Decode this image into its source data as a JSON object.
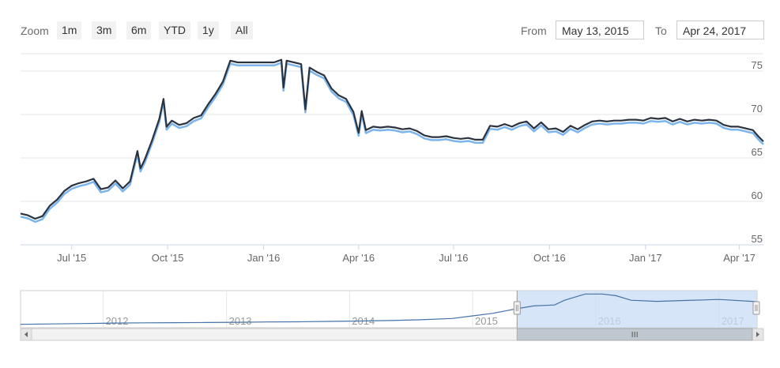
{
  "range_selector": {
    "zoom_label": "Zoom",
    "buttons": [
      "1m",
      "3m",
      "6m",
      "YTD",
      "1y",
      "All"
    ],
    "from_label": "From",
    "from_value": "May 13, 2015",
    "to_label": "To",
    "to_value": "Apr 24, 2017"
  },
  "colors": {
    "series_main": "#2b3340",
    "series_secondary": "#7cb5ec",
    "grid": "#e6e6e6",
    "navigator_mask": "#c8dcf5",
    "navigator_line": "#4572a7"
  },
  "chart_data": {
    "type": "line",
    "title": "",
    "xlabel": "",
    "ylabel": "",
    "x_range": [
      "2015-05-13",
      "2017-04-24"
    ],
    "ylim": [
      55,
      77
    ],
    "y_ticks": [
      55,
      60,
      65,
      70,
      75
    ],
    "x_ticks": [
      {
        "date": "2015-07-01",
        "label": "Jul '15"
      },
      {
        "date": "2015-10-01",
        "label": "Oct '15"
      },
      {
        "date": "2016-01-01",
        "label": "Jan '16"
      },
      {
        "date": "2016-04-01",
        "label": "Apr '16"
      },
      {
        "date": "2016-07-01",
        "label": "Jul '16"
      },
      {
        "date": "2016-10-01",
        "label": "Oct '16"
      },
      {
        "date": "2017-01-01",
        "label": "Jan '17"
      },
      {
        "date": "2017-04-01",
        "label": "Apr '17"
      }
    ],
    "grid": true,
    "legend": "none",
    "series": [
      {
        "values": [
          [
            "2015-05-13",
            58.6
          ],
          [
            "2015-05-20",
            58.4
          ],
          [
            "2015-05-27",
            58.0
          ],
          [
            "2015-06-03",
            58.3
          ],
          [
            "2015-06-10",
            59.5
          ],
          [
            "2015-06-17",
            60.2
          ],
          [
            "2015-06-24",
            61.2
          ],
          [
            "2015-07-01",
            61.8
          ],
          [
            "2015-07-08",
            62.1
          ],
          [
            "2015-07-15",
            62.3
          ],
          [
            "2015-07-22",
            62.6
          ],
          [
            "2015-07-29",
            61.4
          ],
          [
            "2015-08-05",
            61.6
          ],
          [
            "2015-08-12",
            62.4
          ],
          [
            "2015-08-19",
            61.5
          ],
          [
            "2015-08-26",
            62.3
          ],
          [
            "2015-09-02",
            65.8
          ],
          [
            "2015-09-05",
            63.8
          ],
          [
            "2015-09-09",
            64.8
          ],
          [
            "2015-09-16",
            67.0
          ],
          [
            "2015-09-23",
            69.5
          ],
          [
            "2015-09-27",
            71.8
          ],
          [
            "2015-09-30",
            68.6
          ],
          [
            "2015-10-05",
            69.3
          ],
          [
            "2015-10-12",
            68.8
          ],
          [
            "2015-10-19",
            69.0
          ],
          [
            "2015-10-26",
            69.6
          ],
          [
            "2015-11-02",
            69.9
          ],
          [
            "2015-11-09",
            71.2
          ],
          [
            "2015-11-16",
            72.4
          ],
          [
            "2015-11-23",
            73.8
          ],
          [
            "2015-11-30",
            76.2
          ],
          [
            "2015-12-07",
            76.0
          ],
          [
            "2015-12-14",
            76.0
          ],
          [
            "2015-12-21",
            76.0
          ],
          [
            "2015-12-28",
            76.0
          ],
          [
            "2016-01-04",
            76.0
          ],
          [
            "2016-01-11",
            76.0
          ],
          [
            "2016-01-18",
            76.3
          ],
          [
            "2016-01-20",
            73.1
          ],
          [
            "2016-01-23",
            76.2
          ],
          [
            "2016-01-30",
            76.0
          ],
          [
            "2016-02-06",
            75.8
          ],
          [
            "2016-02-10",
            70.6
          ],
          [
            "2016-02-14",
            75.4
          ],
          [
            "2016-02-21",
            74.9
          ],
          [
            "2016-02-28",
            74.5
          ],
          [
            "2016-03-06",
            73.0
          ],
          [
            "2016-03-13",
            72.2
          ],
          [
            "2016-03-20",
            71.8
          ],
          [
            "2016-03-27",
            70.3
          ],
          [
            "2016-04-01",
            67.9
          ],
          [
            "2016-04-04",
            70.4
          ],
          [
            "2016-04-08",
            68.2
          ],
          [
            "2016-04-15",
            68.6
          ],
          [
            "2016-04-22",
            68.5
          ],
          [
            "2016-04-29",
            68.6
          ],
          [
            "2016-05-06",
            68.5
          ],
          [
            "2016-05-13",
            68.3
          ],
          [
            "2016-05-20",
            68.4
          ],
          [
            "2016-05-27",
            68.1
          ],
          [
            "2016-06-03",
            67.6
          ],
          [
            "2016-06-10",
            67.4
          ],
          [
            "2016-06-17",
            67.4
          ],
          [
            "2016-06-24",
            67.5
          ],
          [
            "2016-07-01",
            67.3
          ],
          [
            "2016-07-08",
            67.2
          ],
          [
            "2016-07-15",
            67.3
          ],
          [
            "2016-07-22",
            67.1
          ],
          [
            "2016-07-29",
            67.1
          ],
          [
            "2016-08-05",
            68.7
          ],
          [
            "2016-08-12",
            68.6
          ],
          [
            "2016-08-19",
            68.9
          ],
          [
            "2016-08-26",
            68.6
          ],
          [
            "2016-09-02",
            69.0
          ],
          [
            "2016-09-09",
            69.2
          ],
          [
            "2016-09-16",
            68.4
          ],
          [
            "2016-09-23",
            69.1
          ],
          [
            "2016-09-30",
            68.3
          ],
          [
            "2016-10-07",
            68.4
          ],
          [
            "2016-10-14",
            68.0
          ],
          [
            "2016-10-21",
            68.7
          ],
          [
            "2016-10-28",
            68.3
          ],
          [
            "2016-11-04",
            68.8
          ],
          [
            "2016-11-11",
            69.2
          ],
          [
            "2016-11-18",
            69.3
          ],
          [
            "2016-11-25",
            69.2
          ],
          [
            "2016-12-02",
            69.3
          ],
          [
            "2016-12-09",
            69.3
          ],
          [
            "2016-12-16",
            69.4
          ],
          [
            "2016-12-23",
            69.4
          ],
          [
            "2016-12-30",
            69.3
          ],
          [
            "2017-01-06",
            69.6
          ],
          [
            "2017-01-13",
            69.5
          ],
          [
            "2017-01-20",
            69.6
          ],
          [
            "2017-01-27",
            69.2
          ],
          [
            "2017-02-03",
            69.5
          ],
          [
            "2017-02-10",
            69.2
          ],
          [
            "2017-02-17",
            69.4
          ],
          [
            "2017-02-24",
            69.3
          ],
          [
            "2017-03-03",
            69.4
          ],
          [
            "2017-03-10",
            69.3
          ],
          [
            "2017-03-17",
            68.8
          ],
          [
            "2017-03-24",
            68.6
          ],
          [
            "2017-03-31",
            68.6
          ],
          [
            "2017-04-07",
            68.4
          ],
          [
            "2017-04-14",
            68.2
          ],
          [
            "2017-04-19",
            67.5
          ],
          [
            "2017-04-24",
            66.9
          ]
        ]
      }
    ],
    "navigator": {
      "x_range": [
        "2011-05-01",
        "2017-04-24"
      ],
      "year_labels": [
        "2012",
        "2013",
        "2014",
        "2015",
        "2016",
        "2017"
      ],
      "values": [
        [
          "2011-05-01",
          40
        ],
        [
          "2011-08-01",
          40.5
        ],
        [
          "2011-11-01",
          41
        ],
        [
          "2012-02-01",
          41.5
        ],
        [
          "2012-05-01",
          41.8
        ],
        [
          "2012-08-01",
          42
        ],
        [
          "2012-11-01",
          42.2
        ],
        [
          "2013-02-01",
          42.5
        ],
        [
          "2013-05-01",
          42.8
        ],
        [
          "2013-08-01",
          43
        ],
        [
          "2013-11-01",
          43.5
        ],
        [
          "2014-02-01",
          44
        ],
        [
          "2014-05-01",
          44.5
        ],
        [
          "2014-08-01",
          45.5
        ],
        [
          "2014-11-01",
          47
        ],
        [
          "2015-01-01",
          50
        ],
        [
          "2015-03-01",
          53
        ],
        [
          "2015-05-13",
          58.6
        ],
        [
          "2015-07-01",
          61.8
        ],
        [
          "2015-09-01",
          63
        ],
        [
          "2015-10-01",
          68.6
        ],
        [
          "2015-12-01",
          76
        ],
        [
          "2016-01-20",
          76
        ],
        [
          "2016-03-01",
          74
        ],
        [
          "2016-04-15",
          68.6
        ],
        [
          "2016-07-01",
          67.3
        ],
        [
          "2016-10-01",
          68.4
        ],
        [
          "2017-01-01",
          69.5
        ],
        [
          "2017-04-24",
          66.9
        ]
      ]
    }
  }
}
